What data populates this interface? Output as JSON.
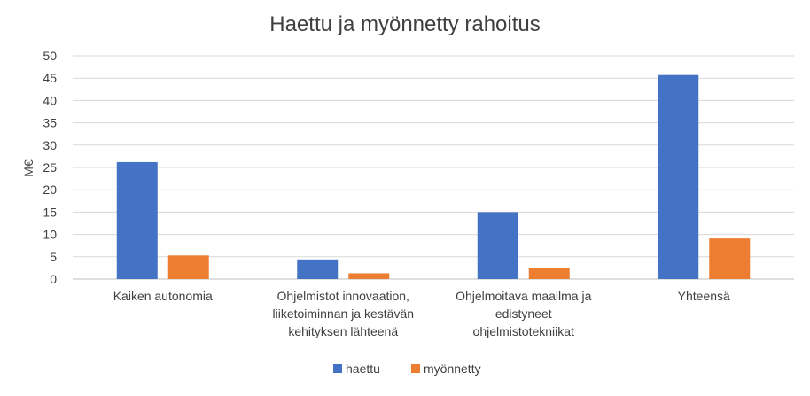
{
  "chart_data": {
    "type": "bar",
    "title": "Haettu ja myönnetty rahoitus",
    "xlabel": "",
    "ylabel": "M€",
    "ylim": [
      0,
      50
    ],
    "yticks": [
      0,
      5,
      10,
      15,
      20,
      25,
      30,
      35,
      40,
      45,
      50
    ],
    "grid": true,
    "legend": "bottom",
    "categories": [
      [
        "Kaiken autonomia"
      ],
      [
        "Ohjelmistot innovaation,",
        "liiketoiminnan ja kestävän",
        "kehityksen lähteenä"
      ],
      [
        "Ohjelmoitava maailma ja",
        "edistyneet",
        "ohjelmistotekniikat"
      ],
      [
        "Yhteensä"
      ]
    ],
    "series": [
      {
        "name": "haettu",
        "color": "#4472C4",
        "values": [
          26.2,
          4.4,
          15.0,
          45.7
        ]
      },
      {
        "name": "myönnetty",
        "color": "#ED7D31",
        "values": [
          5.3,
          1.3,
          2.4,
          9.1
        ]
      }
    ]
  }
}
